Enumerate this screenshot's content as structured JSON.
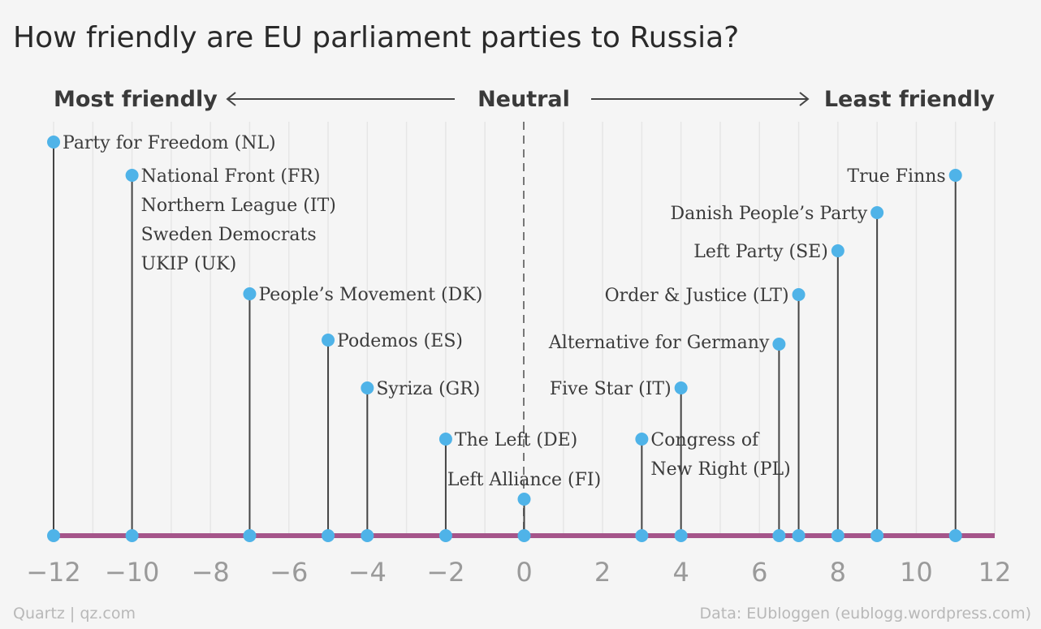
{
  "chart_data": {
    "type": "scatter",
    "title": "How friendly are EU parliament parties to Russia?",
    "scale_labels": {
      "left": "Most friendly",
      "center": "Neutral",
      "right": "Least friendly"
    },
    "xlim": [
      -12,
      12
    ],
    "x_ticks": [
      -12,
      -10,
      -8,
      -6,
      -4,
      -2,
      0,
      2,
      4,
      6,
      8,
      10,
      12
    ],
    "grid": true,
    "axis_color": "#a5558a",
    "marker_color": "#4fb3e8",
    "points": [
      {
        "x": -12,
        "labels": [
          "Party for Freedom (NL)"
        ]
      },
      {
        "x": -10,
        "labels": [
          "National Front (FR)",
          "Northern League (IT)",
          "Sweden Democrats",
          "UKIP (UK)"
        ]
      },
      {
        "x": -7,
        "labels": [
          "People’s Movement (DK)"
        ]
      },
      {
        "x": -5,
        "labels": [
          "Podemos (ES)"
        ]
      },
      {
        "x": -4,
        "labels": [
          "Syriza (GR)"
        ]
      },
      {
        "x": -2,
        "labels": [
          "The Left (DE)"
        ]
      },
      {
        "x": 0,
        "labels": [
          "Left Alliance (FI)"
        ]
      },
      {
        "x": 3,
        "labels": [
          "Congress of",
          "New Right (PL)"
        ]
      },
      {
        "x": 4,
        "labels": [
          "Five Star (IT)"
        ]
      },
      {
        "x": 6.5,
        "labels": [
          "Alternative for Germany"
        ]
      },
      {
        "x": 7,
        "labels": [
          "Order & Justice (LT)"
        ]
      },
      {
        "x": 8,
        "labels": [
          "Left Party (SE)"
        ]
      },
      {
        "x": 9,
        "labels": [
          "Danish People’s Party"
        ]
      },
      {
        "x": 11,
        "labels": [
          "True Finns"
        ]
      }
    ]
  },
  "footer": {
    "source_left": "Quartz | qz.com",
    "source_right": "Data: EUbloggen (eublogg.wordpress.com)"
  }
}
